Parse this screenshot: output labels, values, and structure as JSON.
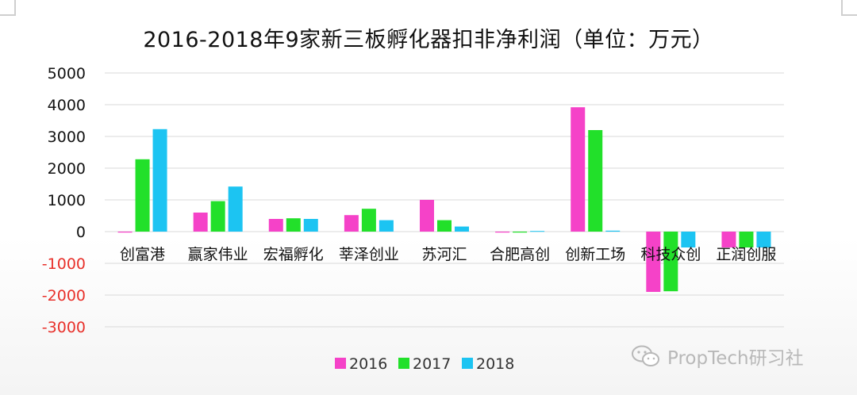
{
  "chart_data": {
    "type": "bar",
    "title": "2016-2018年9家新三板孵化器扣非净利润（单位：万元）",
    "categories": [
      "创富港",
      "赢家伟业",
      "宏福孵化",
      "莘泽创业",
      "苏河汇",
      "合肥高创",
      "创新工场",
      "科技众创",
      "正润创服"
    ],
    "series": [
      {
        "name": "2016",
        "color": "#f542c8",
        "values": [
          -30,
          600,
          400,
          520,
          1000,
          -30,
          3920,
          -1900,
          -500
        ]
      },
      {
        "name": "2017",
        "color": "#22e02a",
        "values": [
          2280,
          960,
          420,
          720,
          360,
          -30,
          3200,
          -1880,
          -500
        ]
      },
      {
        "name": "2018",
        "color": "#1cc4f2",
        "values": [
          3230,
          1420,
          400,
          360,
          160,
          20,
          30,
          -500,
          -500
        ]
      }
    ],
    "ylim": [
      -3000,
      5000
    ],
    "yticks": [
      5000,
      4000,
      3000,
      2000,
      1000,
      0,
      -1000,
      -2000,
      -3000
    ],
    "negative_tick_color": "#e8302a",
    "positive_tick_color": "#111111",
    "grid": true,
    "legend_position": "bottom-center"
  },
  "watermark": {
    "text": "PropTech研习社",
    "icon": "wechat-icon"
  }
}
